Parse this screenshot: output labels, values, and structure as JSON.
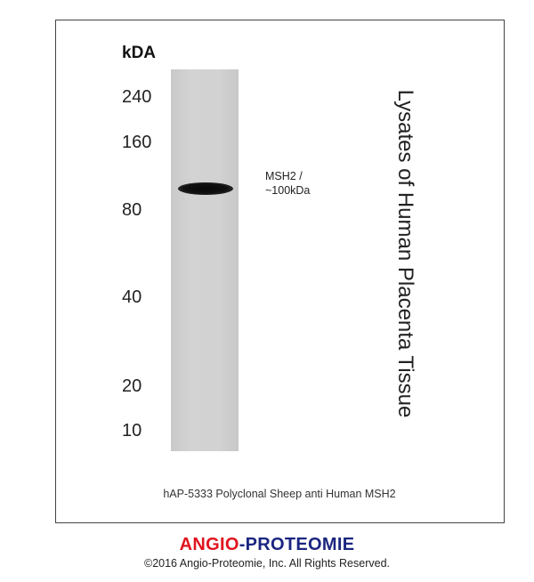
{
  "figure": {
    "unit_label": "kDA",
    "markers": [
      "240",
      "160",
      "80",
      "40",
      "20",
      "10"
    ],
    "band_label_line1": "MSH2 /",
    "band_label_line2": "~100kDa",
    "side_title": "Lysates of Human Placenta Tissue",
    "caption": "hAP-5333 Polyclonal Sheep anti Human MSH2"
  },
  "footer": {
    "brand_part1": "ANGIO",
    "brand_sep": "-",
    "brand_part2": "PROTEOMIE",
    "copyright": "©2016 Angio-Proteomie, Inc.  All Rights Reserved.",
    "colors": {
      "brand_red": "#e0141e",
      "brand_blue": "#1b2680"
    }
  }
}
